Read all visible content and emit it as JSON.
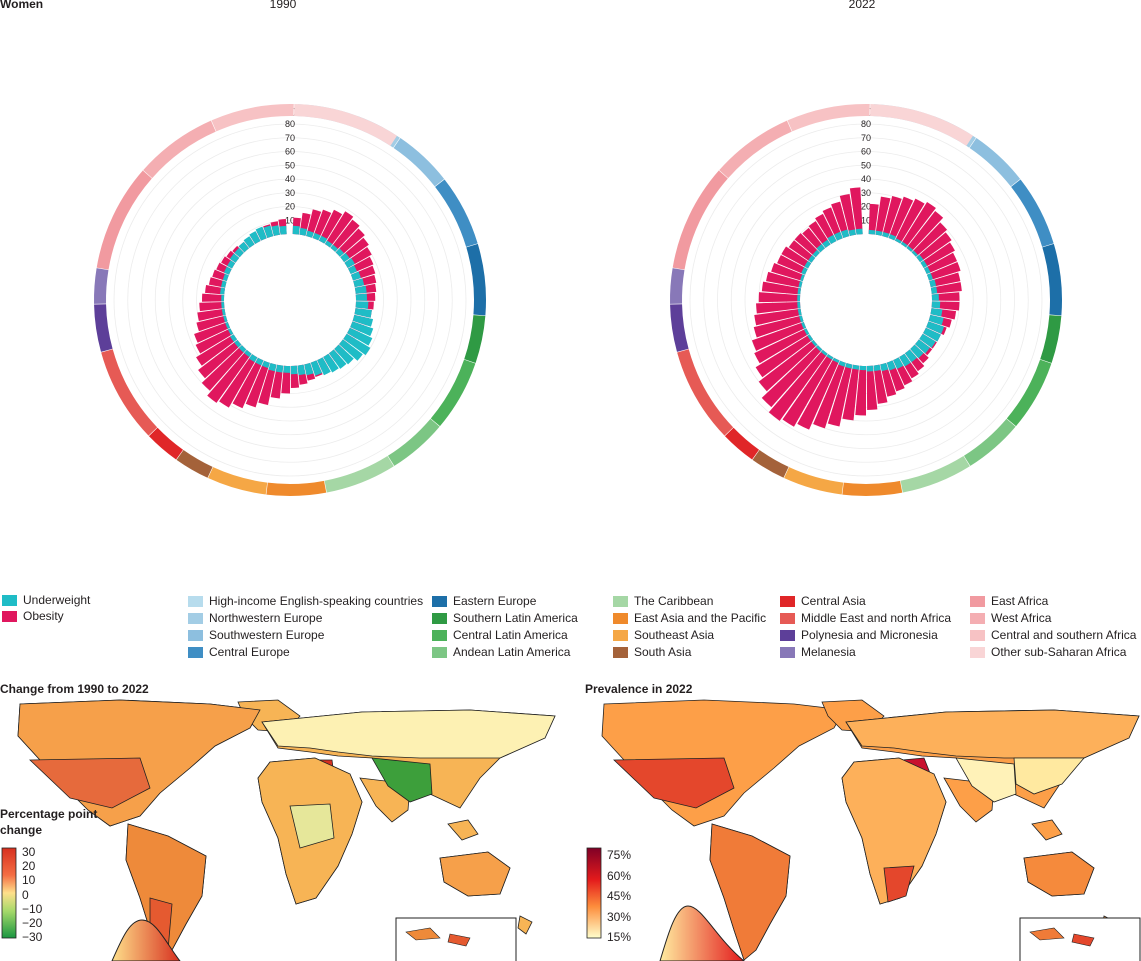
{
  "figure": {
    "panel_label": "Women",
    "year_left": "1990",
    "year_right": "2022",
    "radial_unit": "(%)",
    "radial_ticks": [
      "10",
      "20",
      "30",
      "40",
      "50",
      "60",
      "70",
      "80"
    ]
  },
  "legend": {
    "indicators": [
      {
        "label": "Underweight",
        "color": "#1fbcc6"
      },
      {
        "label": "Obesity",
        "color": "#e0175e"
      }
    ],
    "regions": [
      {
        "label": "High-income English-speaking countries",
        "color": "#b7dced"
      },
      {
        "label": "Northwestern Europe",
        "color": "#a3cde5"
      },
      {
        "label": "Southwestern Europe",
        "color": "#8dbfdf"
      },
      {
        "label": "Central Europe",
        "color": "#3f8ec4"
      },
      {
        "label": "Eastern Europe",
        "color": "#1d6fa8"
      },
      {
        "label": "Southern Latin America",
        "color": "#2f9a44"
      },
      {
        "label": "Central Latin America",
        "color": "#4cb25a"
      },
      {
        "label": "Andean Latin America",
        "color": "#7cc684"
      },
      {
        "label": "The Caribbean",
        "color": "#a5d7a5"
      },
      {
        "label": "East Asia and the Pacific",
        "color": "#ef8a2c"
      },
      {
        "label": "Southeast Asia",
        "color": "#f5a745"
      },
      {
        "label": "South Asia",
        "color": "#a4623a"
      },
      {
        "label": "Central Asia",
        "color": "#e02628"
      },
      {
        "label": "Middle East and north Africa",
        "color": "#e65a55"
      },
      {
        "label": "Polynesia and Micronesia",
        "color": "#5d3f99"
      },
      {
        "label": "Melanesia",
        "color": "#8878b8"
      },
      {
        "label": "East Africa",
        "color": "#f19aa0"
      },
      {
        "label": "West Africa",
        "color": "#f4aeb2"
      },
      {
        "label": "Central and southern Africa",
        "color": "#f7c2c4"
      },
      {
        "label": "Other sub-Saharan Africa",
        "color": "#f9d5d6"
      }
    ]
  },
  "maps": {
    "left_title": "Change from 1990 to 2022",
    "right_title": "Prevalence in 2022",
    "left_scale_title_1": "Percentage point",
    "left_scale_title_2": "change",
    "left_scale_ticks": [
      "30",
      "20",
      "10",
      "0",
      "−10",
      "−20",
      "−30"
    ],
    "right_scale_ticks": [
      "75%",
      "60%",
      "45%",
      "30%",
      "15%"
    ]
  },
  "chart_data": [
    {
      "type": "bar",
      "subtype": "circular",
      "title": "1990",
      "unit": "%",
      "rlim": [
        0,
        80
      ],
      "series": [
        {
          "name": "Underweight",
          "values": [
            6,
            5,
            4,
            4,
            4,
            3,
            3,
            4,
            5,
            6,
            5,
            6,
            7,
            8,
            8,
            9,
            12,
            14,
            16,
            18,
            20,
            18,
            15,
            14,
            13,
            12,
            10,
            8,
            7,
            6,
            5,
            5,
            5,
            4,
            4,
            4,
            3,
            3,
            3,
            3,
            2,
            2,
            2,
            2,
            2,
            2,
            3,
            3,
            3,
            4,
            4,
            5,
            5,
            6,
            7,
            8,
            9,
            8,
            7,
            6
          ]
        },
        {
          "name": "Obesity",
          "values": [
            12,
            16,
            20,
            22,
            25,
            28,
            26,
            24,
            22,
            20,
            18,
            17,
            16,
            15,
            14,
            13,
            12,
            11,
            9,
            8,
            7,
            6,
            6,
            7,
            8,
            9,
            11,
            12,
            14,
            16,
            20,
            24,
            30,
            34,
            38,
            42,
            44,
            40,
            36,
            32,
            28,
            26,
            22,
            20,
            18,
            16,
            14,
            12,
            11,
            10,
            9,
            8,
            7,
            6,
            6,
            7,
            8,
            9,
            10,
            11
          ]
        }
      ]
    },
    {
      "type": "bar",
      "subtype": "circular",
      "title": "2022",
      "unit": "%",
      "rlim": [
        0,
        80
      ],
      "series": [
        {
          "name": "Underweight",
          "values": [
            3,
            3,
            3,
            3,
            2,
            2,
            2,
            2,
            3,
            3,
            3,
            3,
            4,
            4,
            5,
            6,
            8,
            10,
            12,
            12,
            11,
            10,
            9,
            8,
            8,
            7,
            6,
            5,
            4,
            4,
            3,
            3,
            3,
            3,
            2,
            2,
            2,
            2,
            2,
            2,
            2,
            2,
            2,
            2,
            2,
            2,
            2,
            2,
            2,
            3,
            3,
            3,
            3,
            4,
            4,
            5,
            5,
            5,
            4,
            4
          ]
        },
        {
          "name": "Obesity",
          "values": [
            22,
            28,
            30,
            32,
            34,
            36,
            34,
            30,
            28,
            26,
            24,
            24,
            22,
            22,
            20,
            20,
            18,
            16,
            14,
            12,
            12,
            12,
            14,
            16,
            18,
            20,
            22,
            24,
            28,
            32,
            36,
            40,
            46,
            50,
            55,
            58,
            60,
            56,
            50,
            46,
            42,
            40,
            36,
            34,
            32,
            30,
            28,
            26,
            24,
            22,
            22,
            20,
            20,
            19,
            20,
            22,
            24,
            26,
            30,
            34
          ]
        }
      ]
    }
  ]
}
